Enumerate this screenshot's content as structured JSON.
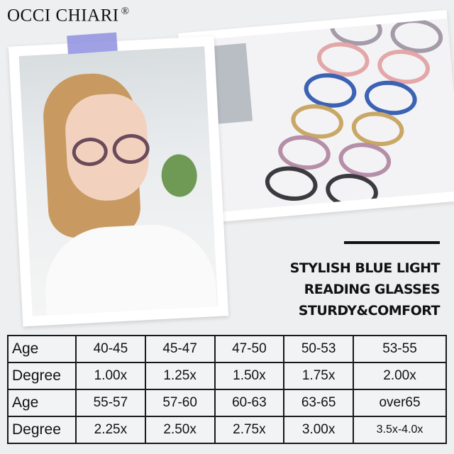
{
  "brand": {
    "name": "OCCI CHIARI",
    "mark": "®"
  },
  "headline": {
    "lines": [
      "STYLISH BLUE LIGHT",
      "READING GLASSES",
      "STURDY&COMFORT"
    ]
  },
  "colors": {
    "background": "#eeeff0",
    "tape": "#8f90e0",
    "text": "#111111"
  },
  "frames": [
    {
      "color": "#a49aa8"
    },
    {
      "color": "#e3a7a8"
    },
    {
      "color": "#3c62b4"
    },
    {
      "color": "#c9a766"
    },
    {
      "color": "#b58ea8"
    },
    {
      "color": "#3b3b3f"
    }
  ],
  "table": {
    "rows": [
      {
        "label": "Age",
        "cells": [
          "40-45",
          "45-47",
          "47-50",
          "50-53",
          "53-55"
        ]
      },
      {
        "label": "Degree",
        "cells": [
          "1.00x",
          "1.25x",
          "1.50x",
          "1.75x",
          "2.00x"
        ]
      },
      {
        "label": "Age",
        "cells": [
          "55-57",
          "57-60",
          "60-63",
          "63-65",
          "over65"
        ]
      },
      {
        "label": "Degree",
        "cells": [
          "2.25x",
          "2.50x",
          "2.75x",
          "3.00x",
          "3.5x-4.0x"
        ]
      }
    ]
  }
}
